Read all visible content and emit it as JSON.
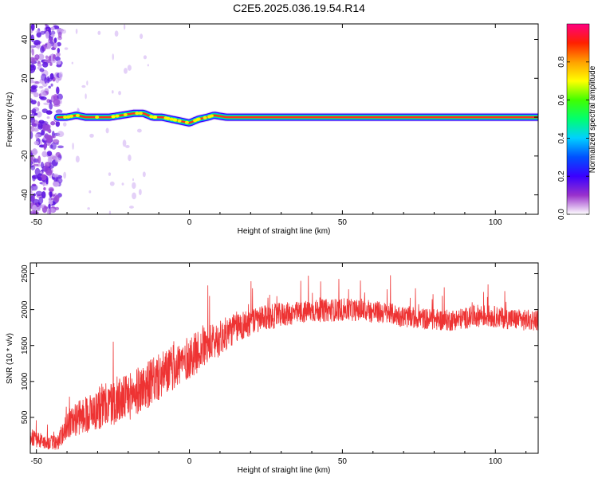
{
  "title": "C2E5.2025.036.19.54.R14",
  "chart_data": [
    {
      "type": "heatmap",
      "xlabel": "Height of straight line (km)",
      "ylabel": "Frequency (Hz)",
      "xlim": [
        -52,
        114
      ],
      "ylim": [
        -50,
        48
      ],
      "xticks": [
        -50,
        0,
        50,
        100
      ],
      "yticks": [
        -40,
        -20,
        0,
        20,
        40
      ],
      "grid": false,
      "colorbar": {
        "label": "Normalized spectral amplitude",
        "range": [
          0,
          1
        ],
        "ticks": [
          0.0,
          0.2,
          0.4,
          0.6,
          0.8
        ],
        "colors": [
          "#ffffff",
          "#9932cc",
          "#3a00ff",
          "#0050ff",
          "#00d0ff",
          "#00ff70",
          "#40ff00",
          "#ffff00",
          "#ffa000",
          "#ff2000",
          "#ff0080"
        ]
      },
      "frequency_track": {
        "x": [
          -43,
          -40,
          -37,
          -34,
          -30,
          -26,
          -22,
          -18,
          -15,
          -12,
          -9,
          -6,
          -3,
          0,
          3,
          6,
          8,
          12,
          20,
          40,
          60,
          80,
          100,
          114
        ],
        "y": [
          0,
          0,
          1,
          0,
          0,
          0,
          1,
          2,
          2,
          0,
          0,
          -1,
          -2,
          -3,
          -1,
          0,
          1,
          0,
          0,
          0,
          0,
          0,
          0,
          0
        ]
      },
      "noise_region": [
        -52,
        -43
      ]
    },
    {
      "type": "line",
      "xlabel": "Height of straight line (km)",
      "ylabel": "SNR (10 * v/v)",
      "xlim": [
        -52,
        114
      ],
      "ylim": [
        0,
        2650
      ],
      "xticks": [
        -50,
        0,
        50,
        100
      ],
      "yticks": [
        500,
        1000,
        1500,
        2000,
        2500
      ],
      "grid": false,
      "series": [
        {
          "color": "#ee3333",
          "x": [
            -52,
            -47,
            -43,
            -40,
            -35,
            -30,
            -25,
            -20,
            -15,
            -10,
            -5,
            0,
            5,
            10,
            15,
            20,
            25,
            30,
            35,
            40,
            45,
            50,
            55,
            60,
            65,
            70,
            75,
            80,
            85,
            90,
            95,
            100,
            105,
            110,
            114
          ],
          "y": [
            230,
            150,
            150,
            400,
            520,
            620,
            700,
            780,
            920,
            1050,
            1200,
            1330,
            1480,
            1600,
            1750,
            1820,
            1880,
            1930,
            1950,
            1980,
            1990,
            2000,
            1990,
            1970,
            1950,
            1900,
            1880,
            1860,
            1850,
            1880,
            1920,
            1900,
            1870,
            1850,
            1860
          ],
          "spread": [
            120,
            100,
            110,
            200,
            250,
            300,
            320,
            330,
            330,
            330,
            320,
            300,
            280,
            250,
            220,
            200,
            180,
            170,
            160,
            160,
            160,
            160,
            150,
            160,
            150,
            150,
            150,
            150,
            150,
            150,
            160,
            150,
            150,
            150,
            150
          ]
        }
      ]
    }
  ]
}
